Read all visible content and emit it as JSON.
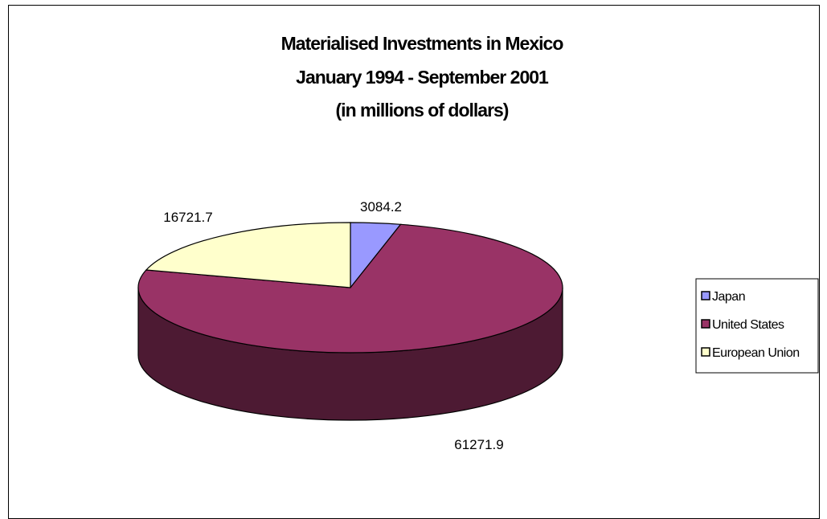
{
  "chart_data": {
    "type": "pie",
    "style": "3d",
    "title": [
      "Materialised Investments in Mexico",
      "January 1994 - September 2001",
      "(in millions of dollars)"
    ],
    "series": [
      {
        "name": "Japan",
        "value": 3084.2,
        "color": "#9999ff",
        "dark": "#4c4c80"
      },
      {
        "name": "United States",
        "value": 61271.9,
        "color": "#993366",
        "dark": "#4d1a33"
      },
      {
        "name": "European Union",
        "value": 16721.7,
        "color": "#ffffcc",
        "dark": "#808066"
      }
    ],
    "data_labels": [
      "3084.2",
      "61271.9",
      "16721.7"
    ],
    "legend": {
      "placement": "right",
      "entries": [
        "Japan",
        "United States",
        "European Union"
      ]
    }
  }
}
